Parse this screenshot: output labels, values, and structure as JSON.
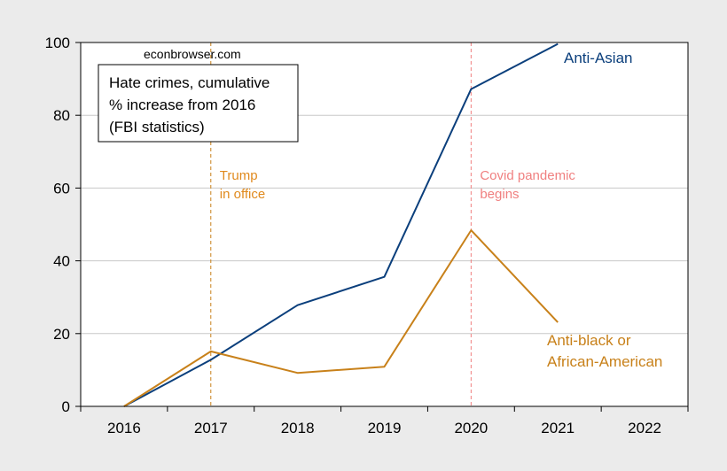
{
  "source": "econbrowser.com",
  "chart_data": {
    "type": "line",
    "title_lines": [
      "Hate crimes, cumulative",
      "% increase from 2016",
      "(FBI statistics)"
    ],
    "xlabel": "",
    "ylabel": "",
    "x_ticks": [
      "2016",
      "2017",
      "2018",
      "2019",
      "2020",
      "2021",
      "2022"
    ],
    "y_ticks": [
      "0",
      "20",
      "40",
      "60",
      "80",
      "100"
    ],
    "xlim": [
      2015.5,
      2022.5
    ],
    "ylim": [
      0,
      100
    ],
    "grid": "horizontal",
    "series": [
      {
        "name": "Anti-Asian",
        "color": "#0b3f7c",
        "x": [
          2016,
          2017,
          2018,
          2019,
          2020,
          2021
        ],
        "values": [
          0,
          12.8,
          27.8,
          35.6,
          87.2,
          99.6
        ]
      },
      {
        "name_lines": [
          "Anti-black or",
          "African-American"
        ],
        "color": "#c8811a",
        "x": [
          2016,
          2017,
          2018,
          2019,
          2020,
          2021
        ],
        "values": [
          0,
          15.1,
          9.2,
          10.9,
          48.4,
          23.1
        ]
      }
    ],
    "annotations": [
      {
        "x": 2017,
        "lines": [
          "Trump",
          "in office"
        ],
        "color": "#e08a1e",
        "line_color": "#c8811a"
      },
      {
        "x": 2020,
        "lines": [
          "Covid pandemic",
          "begins"
        ],
        "color": "#f08080",
        "line_color": "#f08080"
      }
    ]
  }
}
